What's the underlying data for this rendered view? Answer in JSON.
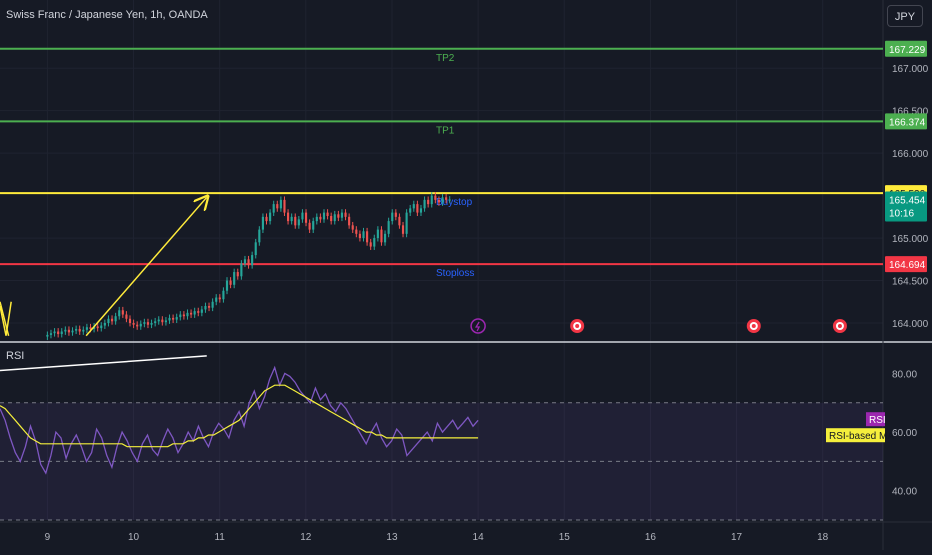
{
  "header": {
    "symbol_title": "Swiss Franc / Japanese Yen, 1h, OANDA",
    "currency_button": "JPY"
  },
  "colors": {
    "background": "#161a25",
    "grid": "#1f2330",
    "bull": "#26a69a",
    "bear": "#ef5350",
    "tp_line": "#4caf50",
    "buystop_line": "#ffeb3b",
    "stoploss_line": "#f23645",
    "rsi_line": "#7e57c2",
    "rsi_ma": "#f5ef3c",
    "axis_text": "#b2b5be"
  },
  "chart_data": [
    {
      "type": "candlestick",
      "title": "",
      "ylim": [
        163.8,
        167.45
      ],
      "y_ticks": [
        "167.000",
        "166.500",
        "166.000",
        "165.000",
        "164.500",
        "164.000"
      ],
      "x_ticks": [
        "9",
        "10",
        "11",
        "12",
        "13",
        "14",
        "15",
        "16",
        "17",
        "18"
      ],
      "x_tick_positions": [
        9,
        10,
        11,
        12,
        13,
        14,
        15,
        16,
        17,
        18
      ],
      "xlim": [
        8.45,
        18.7
      ],
      "levels": [
        {
          "name": "TP2",
          "price": 167.229,
          "label": "167.229",
          "color": "#4caf50"
        },
        {
          "name": "TP1",
          "price": 166.374,
          "label": "166.374",
          "color": "#4caf50"
        },
        {
          "name": "Buystop",
          "price": 165.53,
          "label": "165.530",
          "color": "#ffeb3b"
        },
        {
          "name": "Stoploss",
          "price": 164.694,
          "label": "164.694",
          "color": "#f23645"
        }
      ],
      "last_price": {
        "label": "165.454",
        "countdown": "10:16",
        "price": 165.454
      },
      "candles_start": 9.0,
      "candle_step": 0.0417,
      "closes": [
        163.86,
        163.88,
        163.9,
        163.87,
        163.9,
        163.92,
        163.89,
        163.91,
        163.93,
        163.9,
        163.92,
        163.95,
        163.93,
        163.96,
        163.94,
        163.97,
        164.0,
        164.05,
        164.02,
        164.08,
        164.15,
        164.1,
        164.05,
        164.0,
        163.98,
        163.96,
        163.99,
        164.01,
        163.98,
        164.0,
        164.02,
        164.04,
        164.01,
        164.03,
        164.06,
        164.04,
        164.07,
        164.1,
        164.08,
        164.12,
        164.1,
        164.14,
        164.12,
        164.16,
        164.2,
        164.18,
        164.25,
        164.3,
        164.28,
        164.38,
        164.5,
        164.45,
        164.6,
        164.55,
        164.7,
        164.75,
        164.68,
        164.8,
        164.95,
        165.1,
        165.25,
        165.2,
        165.3,
        165.4,
        165.35,
        165.45,
        165.3,
        165.2,
        165.25,
        165.15,
        165.22,
        165.3,
        165.18,
        165.1,
        165.2,
        165.25,
        165.22,
        165.3,
        165.26,
        165.2,
        165.28,
        165.24,
        165.3,
        165.25,
        165.15,
        165.1,
        165.05,
        165.0,
        165.08,
        164.95,
        164.9,
        165.0,
        165.1,
        164.95,
        165.05,
        165.2,
        165.3,
        165.25,
        165.15,
        165.05,
        165.3,
        165.35,
        165.4,
        165.3,
        165.35,
        165.45,
        165.4,
        165.5,
        165.45,
        165.42,
        165.48,
        165.45,
        165.454
      ],
      "annotations": [
        {
          "type": "trend-arrow",
          "from": [
            9.45,
            163.85
          ],
          "to": [
            10.85,
            165.48
          ]
        },
        {
          "type": "trend-line",
          "from": [
            8.45,
            164.25
          ],
          "to": [
            8.55,
            163.85
          ]
        }
      ],
      "event_markers": [
        {
          "x": 14.0,
          "kind": "lightning"
        },
        {
          "x": 15.15,
          "kind": "target"
        },
        {
          "x": 17.2,
          "kind": "target"
        },
        {
          "x": 18.2,
          "kind": "target"
        }
      ]
    },
    {
      "type": "line",
      "title": "RSI",
      "ylim": [
        30,
        88
      ],
      "y_ticks": [
        "80.00",
        "60.00",
        "40.00"
      ],
      "bands": {
        "upper": 70,
        "middle": 50,
        "lower": 30
      },
      "series": [
        {
          "name": "RSI",
          "color": "#7e57c2",
          "values": [
            68,
            64,
            58,
            53,
            50,
            55,
            62,
            57,
            49,
            46,
            52,
            60,
            58,
            51,
            56,
            59,
            55,
            50,
            53,
            61,
            58,
            52,
            48,
            55,
            60,
            57,
            53,
            50,
            56,
            59,
            54,
            52,
            57,
            61,
            58,
            53,
            56,
            60,
            57,
            62,
            58,
            55,
            60,
            63,
            61,
            58,
            64,
            67,
            62,
            70,
            74,
            68,
            72,
            78,
            82,
            76,
            80,
            79,
            77,
            74,
            72,
            70,
            75,
            71,
            73,
            69,
            67,
            70,
            68,
            65,
            62,
            59,
            56,
            60,
            63,
            58,
            55,
            57,
            61,
            59,
            52,
            54,
            56,
            58,
            60,
            57,
            63,
            60,
            62,
            64,
            61,
            63,
            65,
            62,
            64
          ]
        },
        {
          "name": "RSI-based MA",
          "color": "#f5ef3c",
          "values": [
            69,
            68,
            66,
            64,
            62,
            60,
            58,
            57,
            56,
            56,
            56,
            56,
            56,
            56,
            56,
            56,
            56,
            56,
            56,
            56,
            56,
            56,
            56,
            56,
            56,
            55,
            55,
            55,
            55,
            55,
            55,
            55,
            55,
            55,
            56,
            56,
            56,
            57,
            57,
            58,
            58,
            59,
            59,
            60,
            61,
            62,
            63,
            64,
            66,
            68,
            70,
            72,
            74,
            75,
            76,
            76,
            76,
            75,
            74,
            73,
            72,
            71,
            70,
            69,
            68,
            67,
            66,
            65,
            64,
            63,
            62,
            61,
            60,
            60,
            59,
            59,
            58,
            58,
            58,
            58,
            58,
            58,
            58,
            58,
            58,
            58,
            58,
            58,
            58,
            58,
            58,
            58,
            58,
            58,
            58
          ]
        }
      ],
      "legend": [
        "RSI",
        "RSI-based MA"
      ]
    }
  ]
}
